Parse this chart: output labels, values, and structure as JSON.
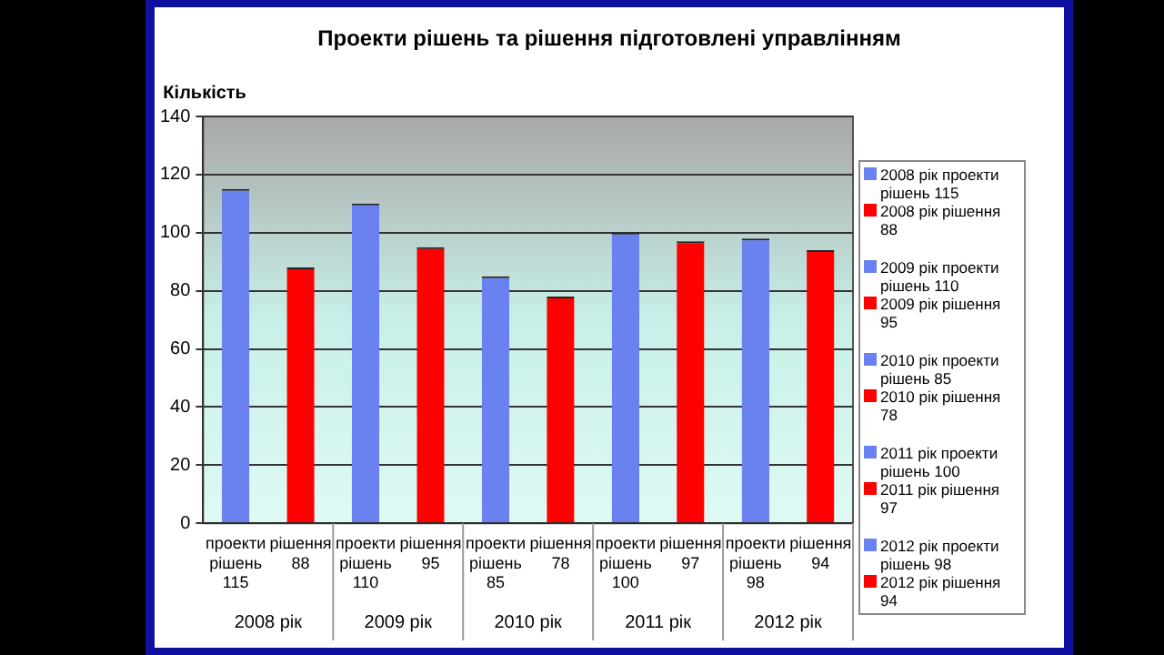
{
  "chart_data": {
    "type": "bar",
    "title": "Проекти рішень та рішення підготовлені управлінням",
    "ylabel": "Кількість",
    "categories": [
      "проекти рішень 115",
      "рішення 88",
      "проекти рішень 110",
      "рішення 95",
      "проекти рішень 85",
      "рішення 78",
      "проекти рішень 100",
      "рішення 97",
      "проекти рішень 98",
      "рішення 94"
    ],
    "series": [
      {
        "name": "2008 рік проекти рішень 115",
        "color": "#6a82f0",
        "values": [
          115,
          null,
          null,
          null,
          null,
          null,
          null,
          null,
          null,
          null
        ]
      },
      {
        "name": "2008 рік рішення 88",
        "color": "#ff0000",
        "values": [
          null,
          88,
          null,
          null,
          null,
          null,
          null,
          null,
          null,
          null
        ]
      },
      {
        "name": "2009 рік проекти рішень 110",
        "color": "#6a82f0",
        "values": [
          null,
          null,
          110,
          null,
          null,
          null,
          null,
          null,
          null,
          null
        ]
      },
      {
        "name": "2009 рік рішення 95",
        "color": "#ff0000",
        "values": [
          null,
          null,
          null,
          95,
          null,
          null,
          null,
          null,
          null,
          null
        ]
      },
      {
        "name": "2010 рік проекти рішень 85",
        "color": "#6a82f0",
        "values": [
          null,
          null,
          null,
          null,
          85,
          null,
          null,
          null,
          null,
          null
        ]
      },
      {
        "name": "2010 рік рішення 78",
        "color": "#ff0000",
        "values": [
          null,
          null,
          null,
          null,
          null,
          78,
          null,
          null,
          null,
          null
        ]
      },
      {
        "name": "2011 рік проекти рішень 100",
        "color": "#6a82f0",
        "values": [
          null,
          null,
          null,
          null,
          null,
          null,
          100,
          null,
          null,
          null
        ]
      },
      {
        "name": "2011 рік рішення 97",
        "color": "#ff0000",
        "values": [
          null,
          null,
          null,
          null,
          null,
          null,
          null,
          97,
          null,
          null
        ]
      },
      {
        "name": "2012 рік проекти рішень 98",
        "color": "#6a82f0",
        "values": [
          null,
          null,
          null,
          null,
          null,
          null,
          null,
          null,
          98,
          null
        ]
      },
      {
        "name": "2012 рік рішення 94",
        "color": "#ff0000",
        "values": [
          null,
          null,
          null,
          null,
          null,
          null,
          null,
          null,
          null,
          94
        ]
      }
    ],
    "annotations": [
      "2008 рік",
      "2009 рік",
      "2010 рік",
      "2011 рік",
      "2012 рік"
    ],
    "ylim": [
      0,
      140
    ],
    "yticks": [
      0,
      20,
      40,
      60,
      80,
      100,
      120,
      140
    ],
    "grid": "y",
    "legend": "right"
  }
}
